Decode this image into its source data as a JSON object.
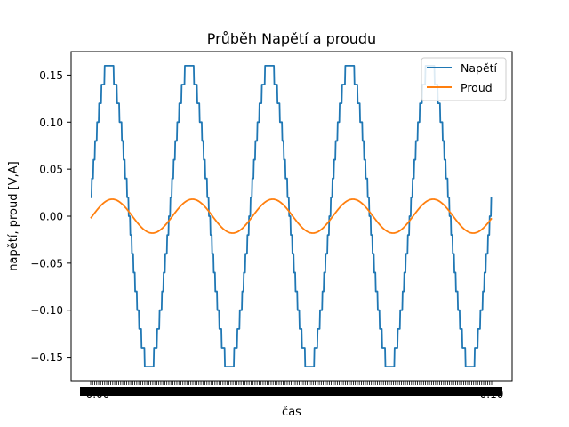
{
  "chart_data": {
    "type": "line",
    "title": "Průběh Napětí a proudu",
    "xlabel": "čas",
    "ylabel": "napětí, proud [V,A]",
    "ylim": [
      -0.175,
      0.175
    ],
    "yticks": [
      -0.15,
      -0.1,
      -0.05,
      0.0,
      0.05,
      0.1,
      0.15
    ],
    "ytick_labels": [
      "−0.15",
      "−0.10",
      "−0.05",
      "0.00",
      "0.05",
      "0.10",
      "0.15"
    ],
    "x_tick_text_left": "0.00",
    "x_tick_text_right": "0.10",
    "grid": false,
    "legend": "top-right",
    "x_range": [
      0,
      0.1
    ],
    "series": [
      {
        "name": "Napětí",
        "color": "#1f77b4",
        "amplitude": 0.16,
        "frequency_hz": 50,
        "phase_deg": 7,
        "quantization_step": 0.02,
        "waveform": "sine, staircase"
      },
      {
        "name": "Proud",
        "color": "#ff7f0e",
        "amplitude": 0.018,
        "frequency_hz": 50,
        "phase_deg": -7,
        "waveform": "sine"
      }
    ]
  }
}
